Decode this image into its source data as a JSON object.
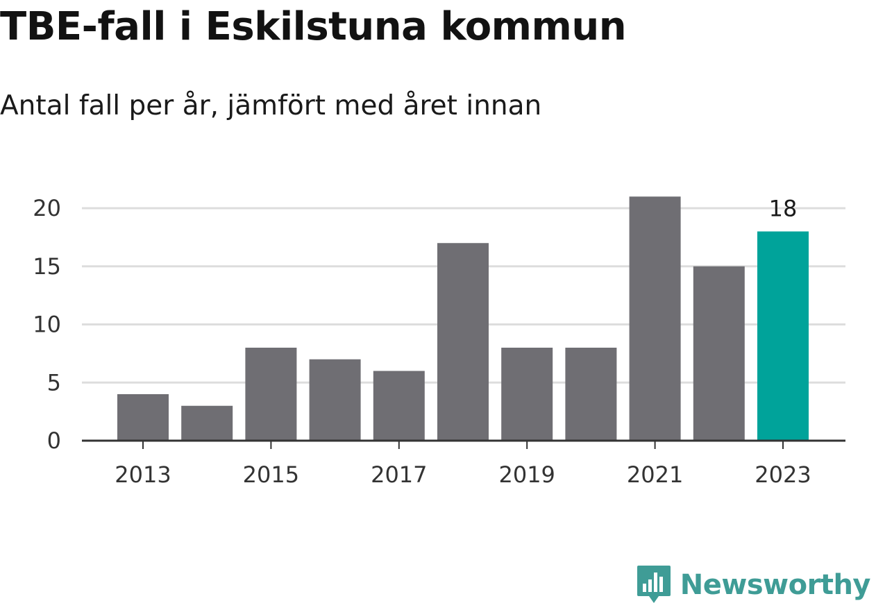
{
  "header": {
    "title": "TBE-fall i Eskilstuna kommun",
    "subtitle": "Antal fall per år, jämfört med året innan"
  },
  "chart_data": {
    "type": "bar",
    "title": "TBE-fall i Eskilstuna kommun",
    "subtitle": "Antal fall per år, jämfört med året innan",
    "xlabel": "",
    "ylabel": "",
    "categories": [
      "2013",
      "2014",
      "2015",
      "2016",
      "2017",
      "2018",
      "2019",
      "2020",
      "2021",
      "2022",
      "2023"
    ],
    "values": [
      4,
      3,
      8,
      7,
      6,
      17,
      8,
      8,
      21,
      15,
      18
    ],
    "x_tick_labels": [
      "2013",
      "2015",
      "2017",
      "2019",
      "2021",
      "2023"
    ],
    "y_ticks": [
      0,
      5,
      10,
      15,
      20
    ],
    "ylim": [
      0,
      21
    ],
    "grid": true,
    "highlight": {
      "category": "2023",
      "label": "18"
    },
    "colors": {
      "default_bar": "#6f6e73",
      "highlight_bar": "#00a39a",
      "grid": "#dddddd",
      "axis": "#333333"
    }
  },
  "brand": {
    "name": "Newsworthy",
    "logo_icon": "bar-chart-speech-bubble-icon",
    "color": "#3f9c96"
  }
}
